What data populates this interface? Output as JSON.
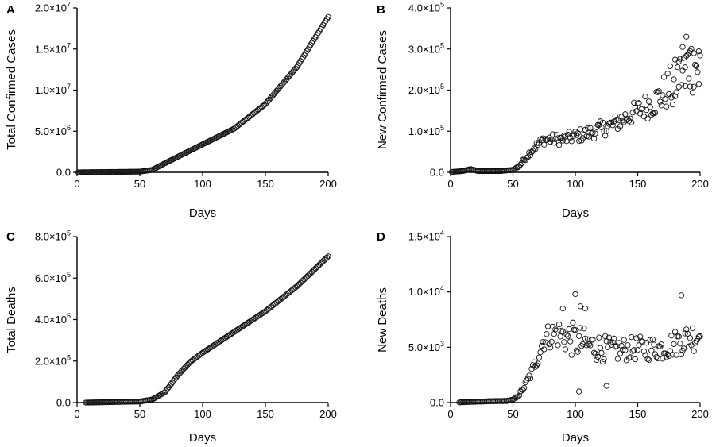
{
  "chart_data": [
    {
      "panel": "A",
      "type": "scatter",
      "title": "",
      "xlabel": "Days",
      "ylabel": "Total Confirmed Cases",
      "xlim": [
        0,
        200
      ],
      "ylim": [
        0,
        20000000
      ],
      "xticks": [
        0,
        50,
        100,
        150,
        200
      ],
      "xtick_labels": [
        "0",
        "50",
        "100",
        "150",
        "200"
      ],
      "yticks": [
        0,
        5000000,
        10000000,
        15000000,
        20000000
      ],
      "ytick_mantissa": [
        "0.0",
        "5.0×10",
        "1.0×10",
        "1.5×10",
        "2.0×10"
      ],
      "ytick_exponent": [
        "",
        "6",
        "7",
        "7",
        "7"
      ],
      "x_range": [
        1,
        200
      ],
      "model": "cumulative",
      "knots": [
        [
          1,
          0
        ],
        [
          50,
          80000
        ],
        [
          60,
          300000
        ],
        [
          70,
          1100000
        ],
        [
          100,
          3400000
        ],
        [
          125,
          5300000
        ],
        [
          150,
          8300000
        ],
        [
          175,
          12800000
        ],
        [
          200,
          18900000
        ]
      ],
      "grid": false,
      "legend": "none"
    },
    {
      "panel": "B",
      "type": "scatter",
      "title": "",
      "xlabel": "Days",
      "ylabel": "New Confirmed Cases",
      "xlim": [
        0,
        200
      ],
      "ylim": [
        0,
        400000
      ],
      "xticks": [
        0,
        50,
        100,
        150,
        200
      ],
      "xtick_labels": [
        "0",
        "50",
        "100",
        "150",
        "200"
      ],
      "yticks": [
        0,
        100000,
        200000,
        300000,
        400000
      ],
      "ytick_mantissa": [
        "0.0",
        "1.0×10",
        "2.0×10",
        "3.0×10",
        "4.0×10"
      ],
      "ytick_exponent": [
        "",
        "5",
        "5",
        "5",
        "5"
      ],
      "x_range": [
        1,
        200
      ],
      "model": "daily",
      "knots": [
        [
          1,
          1000
        ],
        [
          10,
          3000
        ],
        [
          16,
          8000
        ],
        [
          22,
          3000
        ],
        [
          40,
          3000
        ],
        [
          50,
          6000
        ],
        [
          55,
          15000
        ],
        [
          60,
          35000
        ],
        [
          67,
          60000
        ],
        [
          75,
          80000
        ],
        [
          90,
          80000
        ],
        [
          110,
          95000
        ],
        [
          130,
          115000
        ],
        [
          150,
          150000
        ],
        [
          165,
          175000
        ],
        [
          180,
          220000
        ],
        [
          190,
          260000
        ],
        [
          200,
          265000
        ]
      ],
      "noise": [
        [
          40,
          0.03
        ],
        [
          55,
          0.12
        ],
        [
          100,
          0.14
        ],
        [
          150,
          0.14
        ],
        [
          180,
          0.2
        ],
        [
          200,
          0.22
        ]
      ],
      "extra_points": [
        [
          189,
          330000
        ],
        [
          186,
          305000
        ],
        [
          192,
          295000
        ],
        [
          195,
          290000
        ],
        [
          183,
          270000
        ],
        [
          197,
          260000
        ],
        [
          188,
          210000
        ],
        [
          199,
          215000
        ],
        [
          180,
          185000
        ],
        [
          178,
          165000
        ],
        [
          191,
          290000
        ]
      ],
      "grid": false,
      "legend": "none"
    },
    {
      "panel": "C",
      "type": "scatter",
      "title": "",
      "xlabel": "Days",
      "ylabel": "Total Deaths",
      "xlim": [
        0,
        200
      ],
      "ylim": [
        0,
        800000
      ],
      "xticks": [
        0,
        50,
        100,
        150,
        200
      ],
      "xtick_labels": [
        "0",
        "50",
        "100",
        "150",
        "200"
      ],
      "yticks": [
        0,
        200000,
        400000,
        600000,
        800000
      ],
      "ytick_mantissa": [
        "0.0",
        "2.0×10",
        "4.0×10",
        "6.0×10",
        "8.0×10"
      ],
      "ytick_exponent": [
        "",
        "5",
        "5",
        "5",
        "5"
      ],
      "x_range": [
        7,
        200
      ],
      "model": "cumulative",
      "knots": [
        [
          7,
          0
        ],
        [
          50,
          5000
        ],
        [
          60,
          15000
        ],
        [
          70,
          50000
        ],
        [
          80,
          130000
        ],
        [
          90,
          195000
        ],
        [
          100,
          240000
        ],
        [
          125,
          340000
        ],
        [
          150,
          440000
        ],
        [
          175,
          560000
        ],
        [
          200,
          705000
        ]
      ],
      "grid": false,
      "legend": "none"
    },
    {
      "panel": "D",
      "type": "scatter",
      "title": "",
      "xlabel": "Days",
      "ylabel": "New Deaths",
      "xlim": [
        0,
        200
      ],
      "ylim": [
        0,
        15000
      ],
      "xticks": [
        0,
        50,
        100,
        150,
        200
      ],
      "xtick_labels": [
        "0",
        "50",
        "100",
        "150",
        "200"
      ],
      "yticks": [
        0,
        5000,
        10000,
        15000
      ],
      "ytick_mantissa": [
        "0.0",
        "5.0×10",
        "1.0×10",
        "1.5×10"
      ],
      "ytick_exponent": [
        "",
        "3",
        "4",
        "4"
      ],
      "x_range": [
        7,
        200
      ],
      "model": "daily",
      "knots": [
        [
          7,
          20
        ],
        [
          25,
          100
        ],
        [
          45,
          150
        ],
        [
          50,
          250
        ],
        [
          55,
          700
        ],
        [
          60,
          1600
        ],
        [
          65,
          2700
        ],
        [
          70,
          4200
        ],
        [
          75,
          5800
        ],
        [
          85,
          6300
        ],
        [
          95,
          5800
        ],
        [
          110,
          5200
        ],
        [
          130,
          4700
        ],
        [
          150,
          4900
        ],
        [
          170,
          4900
        ],
        [
          185,
          5600
        ],
        [
          200,
          6200
        ]
      ],
      "noise": [
        [
          45,
          0.08
        ],
        [
          60,
          0.15
        ],
        [
          80,
          0.15
        ],
        [
          100,
          0.22
        ],
        [
          140,
          0.17
        ],
        [
          200,
          0.18
        ]
      ],
      "extra_points": [
        [
          100,
          9800
        ],
        [
          104,
          8700
        ],
        [
          108,
          8500
        ],
        [
          103,
          1000
        ],
        [
          125,
          1500
        ],
        [
          185,
          9700
        ],
        [
          90,
          8500
        ]
      ],
      "grid": false,
      "legend": "none"
    }
  ]
}
